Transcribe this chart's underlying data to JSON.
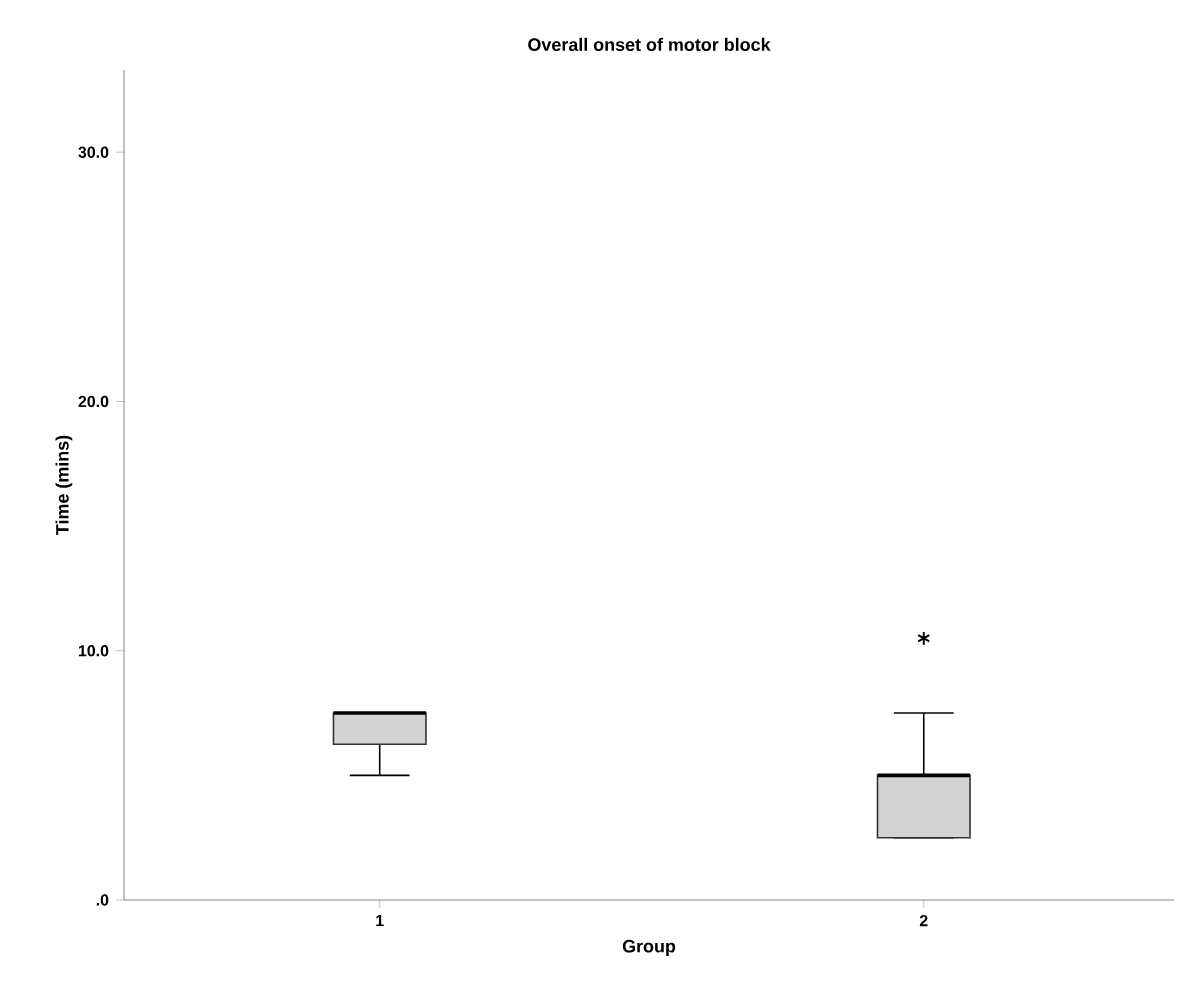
{
  "chart_data": {
    "type": "box",
    "title": "Overall onset of motor block",
    "xlabel": "Group",
    "ylabel": "Time (mins)",
    "categories": [
      "1",
      "2"
    ],
    "boxes": [
      {
        "low": 5.0,
        "q1": 6.25,
        "median": 7.5,
        "q3": 7.5,
        "high": 7.5
      },
      {
        "low": 2.5,
        "q1": 2.5,
        "median": 5.0,
        "q3": 5.0,
        "high": 7.5,
        "outliers": [
          10.5
        ]
      }
    ],
    "color": "#d3d3d3",
    "marker": "star",
    "ylim": [
      0,
      33.3
    ],
    "yticks": [
      {
        "value": 0,
        "label": ".0"
      },
      {
        "value": 10,
        "label": "10.0"
      },
      {
        "value": 20,
        "label": "20.0"
      },
      {
        "value": 30,
        "label": "30.0"
      }
    ],
    "grid": false
  }
}
